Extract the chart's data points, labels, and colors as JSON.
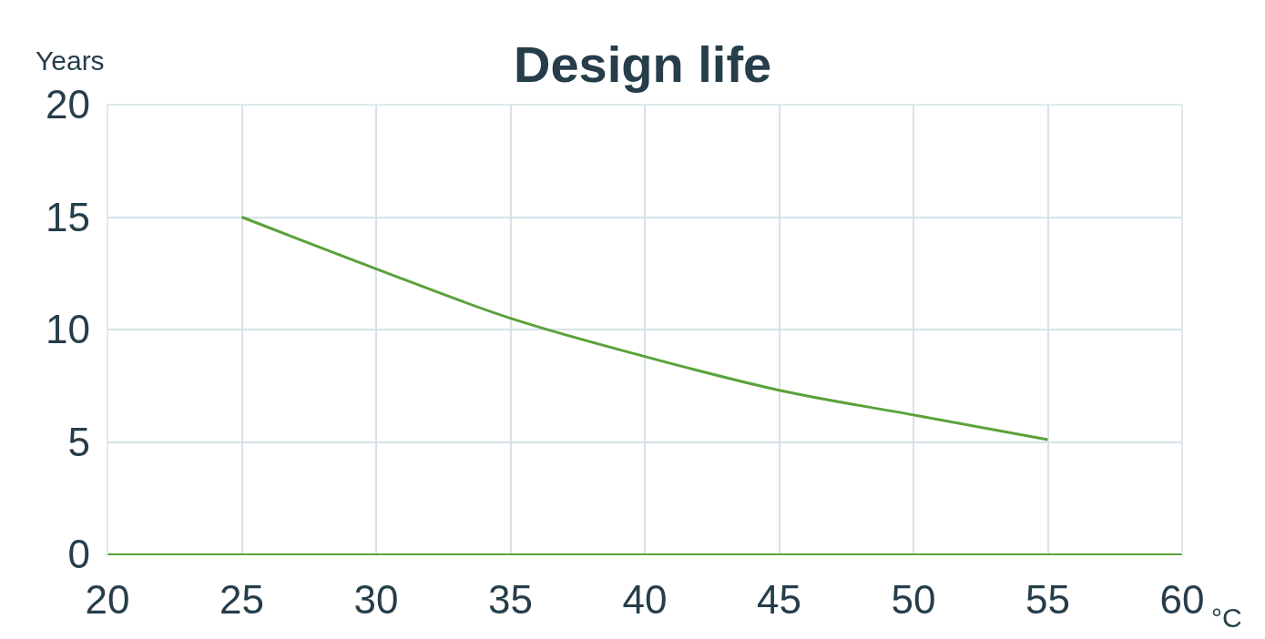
{
  "chart_data": {
    "type": "line",
    "title": "Design life",
    "xlabel": "°C",
    "ylabel": "Years",
    "x": [
      25,
      30,
      35,
      40,
      45,
      50,
      55
    ],
    "series": [
      {
        "color": "#5aa23a",
        "values": [
          15.0,
          12.7,
          10.5,
          8.8,
          7.3,
          6.2,
          5.1
        ]
      }
    ],
    "xlim": [
      20,
      60
    ],
    "xticks": [
      20,
      25,
      30,
      35,
      40,
      45,
      50,
      55,
      60
    ],
    "ylim": [
      0,
      20
    ],
    "yticks": [
      0,
      5,
      10,
      15,
      20
    ],
    "grid": true,
    "marker": "none",
    "line_style": "solid"
  }
}
